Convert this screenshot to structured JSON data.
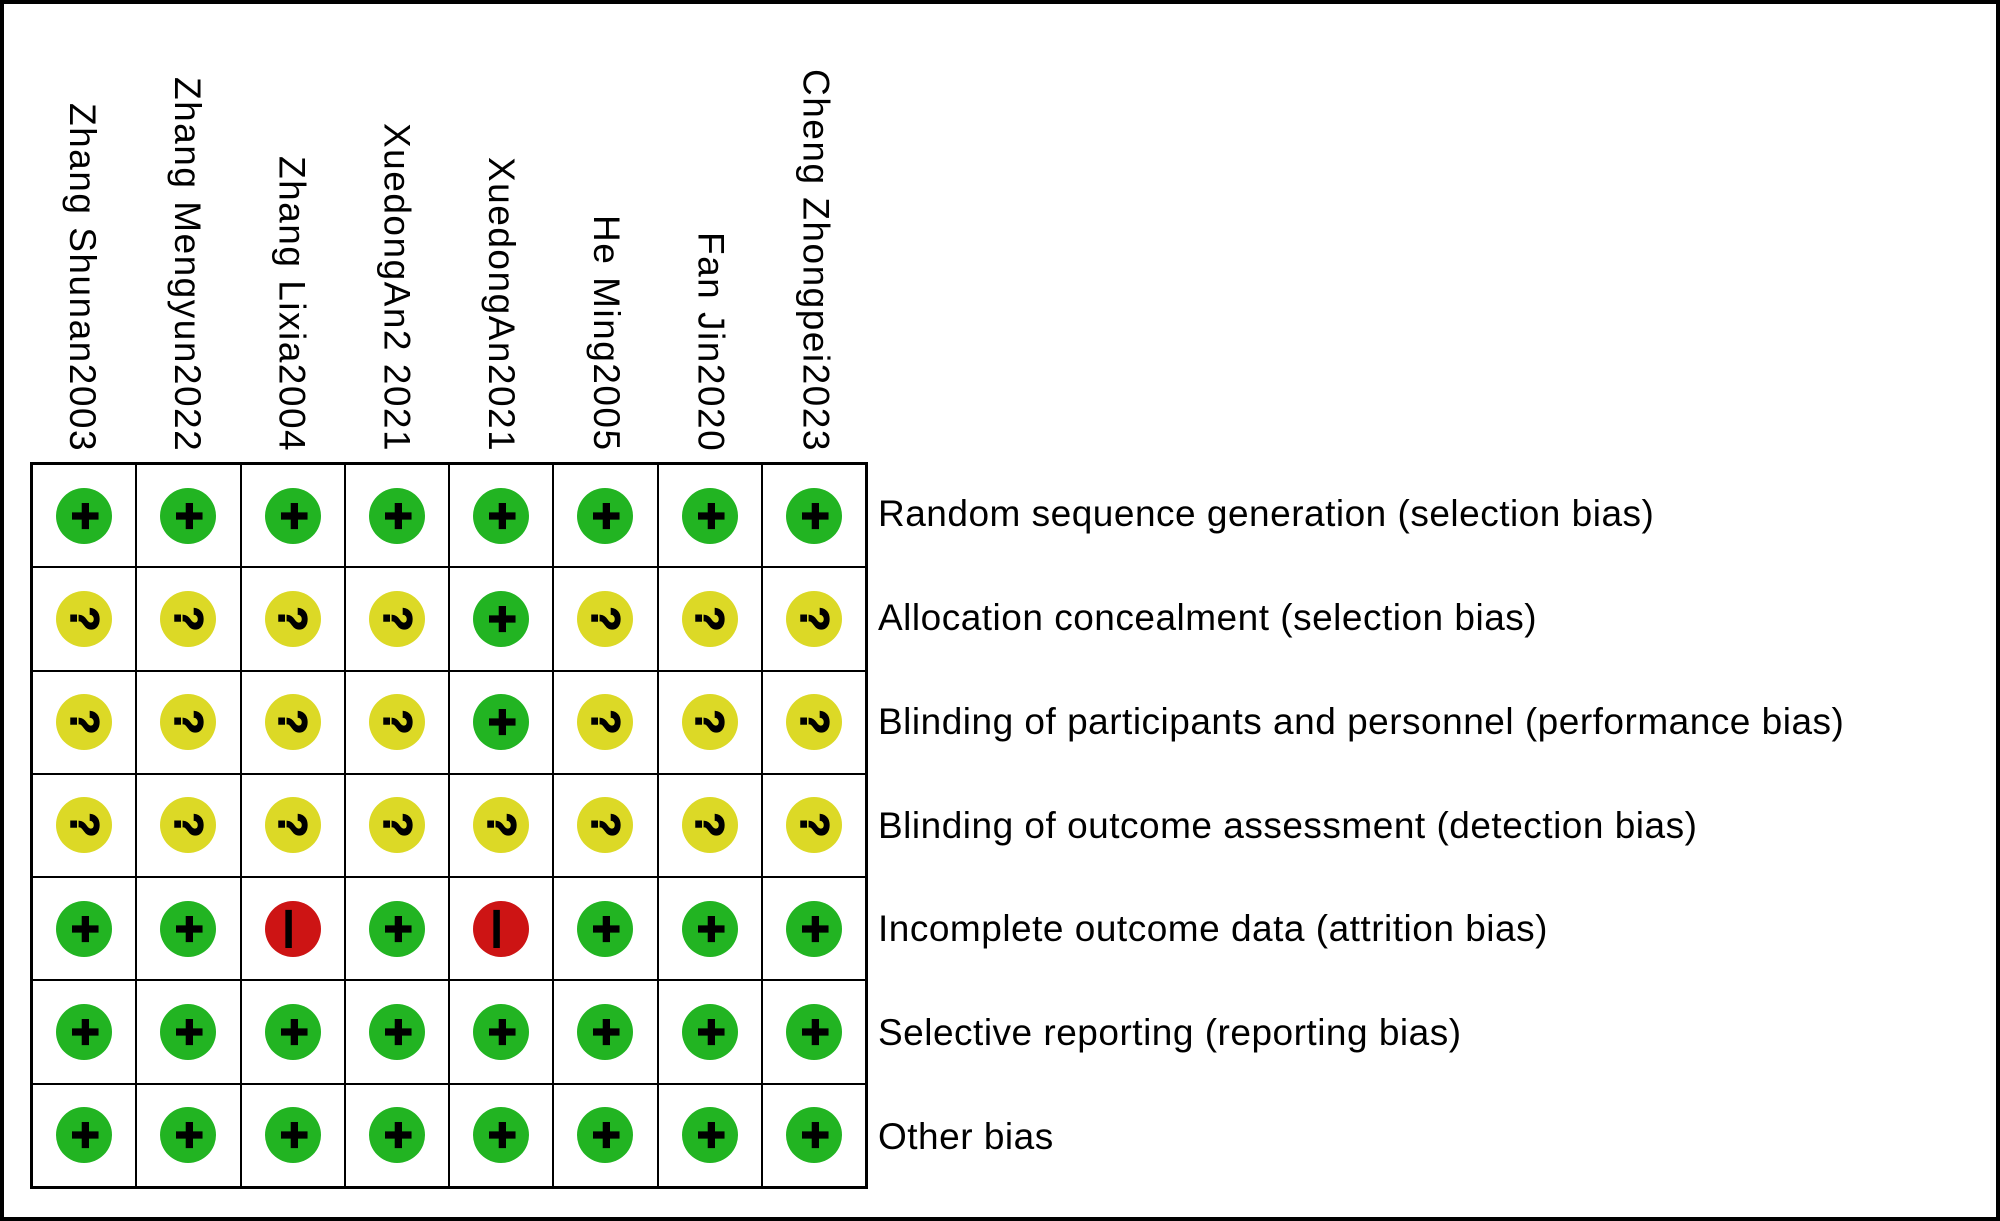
{
  "chart_data": {
    "type": "heatmap",
    "columns": [
      "Zhang Shunan2003",
      "Zhang Mengyun2022",
      "Zhang Lixia2004",
      "XuedongAn2 2021",
      "XuedongAn2021",
      "He Ming2005",
      "Fan Jin2020",
      "Cheng Zhongpei2023"
    ],
    "rows": [
      "Random sequence generation (selection bias)",
      "Allocation concealment (selection bias)",
      "Blinding of participants and personnel (performance bias)",
      "Blinding of outcome assessment (detection bias)",
      "Incomplete outcome data (attrition bias)",
      "Selective reporting (reporting bias)",
      "Other bias"
    ],
    "values": [
      [
        "+",
        "+",
        "+",
        "+",
        "+",
        "+",
        "+",
        "+"
      ],
      [
        "?",
        "?",
        "?",
        "?",
        "+",
        "?",
        "?",
        "?"
      ],
      [
        "?",
        "?",
        "?",
        "?",
        "+",
        "?",
        "?",
        "?"
      ],
      [
        "?",
        "?",
        "?",
        "?",
        "?",
        "?",
        "?",
        "?"
      ],
      [
        "+",
        "+",
        "-",
        "+",
        "-",
        "+",
        "+",
        "+"
      ],
      [
        "+",
        "+",
        "+",
        "+",
        "+",
        "+",
        "+",
        "+"
      ],
      [
        "+",
        "+",
        "+",
        "+",
        "+",
        "+",
        "+",
        "+"
      ]
    ],
    "symbol_colors": {
      "+": "#22b422",
      "?": "#dcd926",
      "-": "#cd1414"
    },
    "symbol_text_color": "#000000",
    "grid": true,
    "legend_position": "none"
  }
}
